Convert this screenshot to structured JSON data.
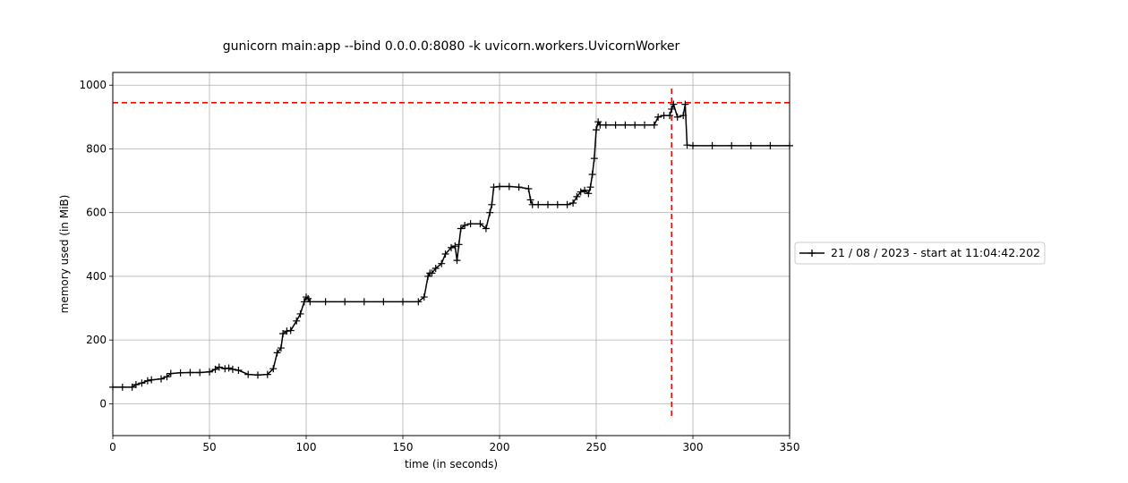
{
  "chart_data": {
    "type": "line",
    "title": "gunicorn main:app --bind 0.0.0.0:8080 -k uvicorn.workers.UvicornWorker",
    "xlabel": "time (in seconds)",
    "ylabel": "memory used (in MiB)",
    "xlim": [
      0,
      350
    ],
    "ylim": [
      -100,
      1040
    ],
    "xticks": [
      0,
      50,
      100,
      150,
      200,
      250,
      300,
      350
    ],
    "yticks": [
      0,
      200,
      400,
      600,
      800,
      1000
    ],
    "grid": true,
    "legend_position": "right",
    "series": [
      {
        "name": "21 / 08 / 2023 - start at 11:04:42.202",
        "color": "#000000",
        "marker": "+",
        "x": [
          0,
          5,
          10,
          12,
          15,
          18,
          20,
          25,
          28,
          30,
          35,
          40,
          45,
          50,
          53,
          55,
          58,
          60,
          62,
          65,
          70,
          75,
          80,
          83,
          85,
          87,
          88,
          90,
          92,
          95,
          97,
          99,
          100,
          101,
          102,
          110,
          120,
          130,
          140,
          150,
          158,
          161,
          163,
          164,
          165,
          167,
          170,
          172,
          175,
          177,
          178,
          179,
          180,
          182,
          185,
          190,
          193,
          195,
          196,
          197,
          200,
          205,
          210,
          215,
          216,
          217,
          220,
          225,
          230,
          235,
          238,
          240,
          242,
          244,
          246,
          247,
          248,
          249,
          250,
          251,
          252,
          255,
          260,
          265,
          270,
          275,
          280,
          282,
          285,
          288,
          289,
          290,
          292,
          295,
          296,
          297,
          300,
          310,
          320,
          330,
          340,
          350
        ],
        "y": [
          52,
          52,
          52,
          60,
          65,
          72,
          75,
          78,
          85,
          95,
          97,
          98,
          98,
          100,
          108,
          115,
          110,
          112,
          108,
          105,
          92,
          90,
          92,
          110,
          160,
          175,
          220,
          228,
          230,
          260,
          282,
          320,
          335,
          330,
          320,
          320,
          320,
          320,
          320,
          320,
          320,
          335,
          400,
          410,
          410,
          425,
          440,
          470,
          490,
          495,
          450,
          500,
          550,
          560,
          565,
          565,
          550,
          600,
          625,
          680,
          682,
          682,
          680,
          675,
          640,
          625,
          625,
          625,
          625,
          625,
          630,
          650,
          665,
          670,
          660,
          680,
          720,
          770,
          860,
          885,
          875,
          875,
          875,
          875,
          875,
          875,
          875,
          900,
          905,
          905,
          925,
          940,
          900,
          905,
          940,
          812,
          810,
          810,
          810,
          810,
          810,
          810
        ]
      }
    ],
    "reference_lines": [
      {
        "orientation": "horizontal",
        "value": 945,
        "color": "#ff0000",
        "style": "dashed"
      },
      {
        "orientation": "vertical",
        "value": 289,
        "color": "#ff0000",
        "style": "dashed"
      }
    ]
  }
}
